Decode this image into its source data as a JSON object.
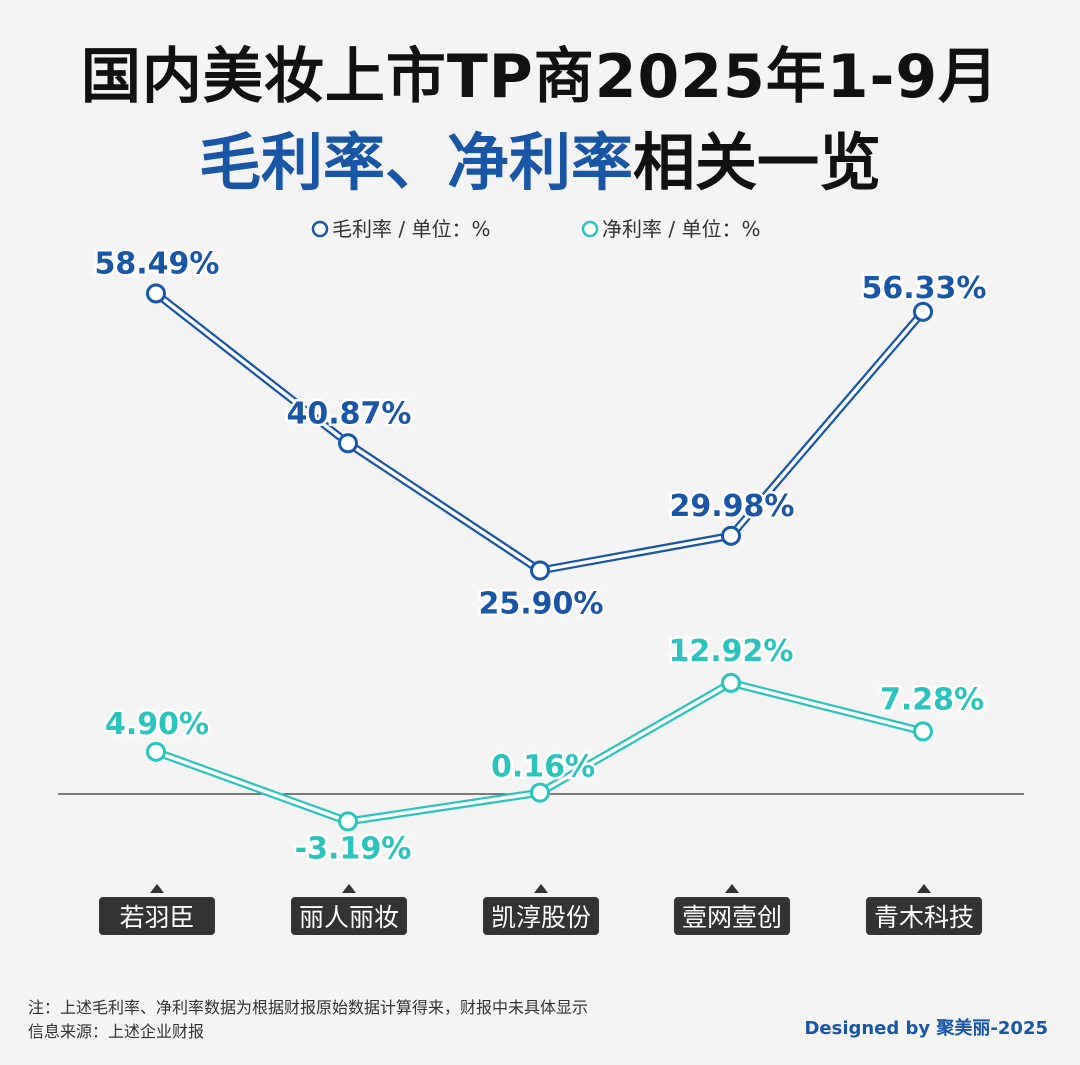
{
  "title": {
    "line1": "国内美妆上市TP商2025年1-9月",
    "line2_hl_1": "毛利率",
    "line2_sep": "、",
    "line2_hl_2": "净利率",
    "line2_tail": "相关一览"
  },
  "colors": {
    "gross": "#1a56a6",
    "net": "#2bc4bd",
    "axis": "#333333",
    "label_bg": "#333333"
  },
  "chart_data": {
    "type": "line",
    "categories": [
      "若羽臣",
      "丽人丽妆",
      "凯淳股份",
      "壹网壹创",
      "青木科技"
    ],
    "series": [
      {
        "name": "毛利率 / 单位：%",
        "values": [
          58.49,
          40.87,
          25.9,
          29.98,
          56.33
        ]
      },
      {
        "name": "净利率 / 单位：%",
        "values": [
          4.9,
          -3.19,
          0.16,
          12.92,
          7.28
        ]
      }
    ],
    "legend_position": "top-center"
  },
  "notes": {
    "line1": "注：上述毛利率、净利率数据为根据财报原始数据计算得来，财报中未具体显示",
    "line2": "信息来源：上述企业财报"
  },
  "credit": "Designed by 聚美丽-2025"
}
